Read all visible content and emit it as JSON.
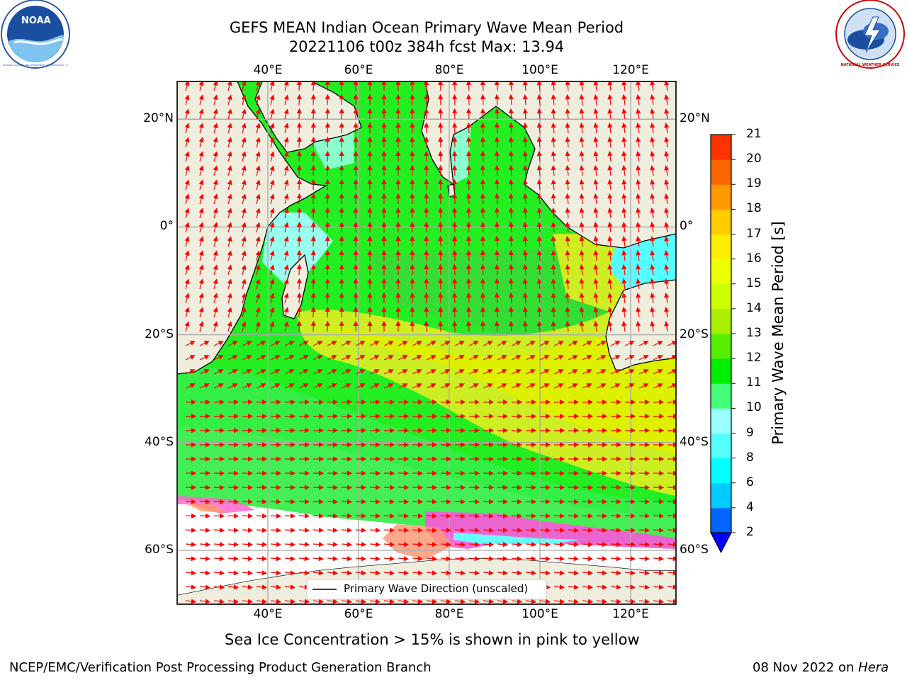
{
  "title": {
    "line1": "GEFS MEAN Indian Ocean Primary Wave Mean Period",
    "line2": "20221106 t00z 384h fcst   Max: 13.94"
  },
  "logos": {
    "noara": "noaa-logo",
    "nws": "nws-logo",
    "noaa_text": "NOAA",
    "noaa_ring_text": "NATIONAL OCEANIC AND ATMOSPHERIC ADMINISTRATION · U.S. DEPARTMENT OF COMMERCE",
    "nws_ring_text": "NATIONAL WEATHER SERVICE"
  },
  "axes": {
    "lon_ticks": [
      "40°E",
      "60°E",
      "80°E",
      "100°E",
      "120°E"
    ],
    "lat_ticks": [
      "20°N",
      "0°",
      "20°S",
      "40°S",
      "60°S"
    ],
    "lon_values": [
      40,
      60,
      80,
      100,
      120
    ],
    "lat_values": [
      20,
      0,
      -20,
      -40,
      -60
    ],
    "lon_range": [
      20,
      130
    ],
    "lat_range": [
      -70,
      27
    ]
  },
  "legend": {
    "label": "Primary Wave Direction (unscaled)",
    "placement": "bottom-center"
  },
  "colorbar": {
    "label": "Primary Wave Mean Period [s]",
    "ticks": [
      "2",
      "4",
      "6",
      "8",
      "9",
      "10",
      "11",
      "12",
      "13",
      "14",
      "15",
      "16",
      "17",
      "18",
      "19",
      "20",
      "21"
    ],
    "colors": [
      "#0066ff",
      "#00ccff",
      "#00ffff",
      "#55ffff",
      "#99ffff",
      "#44ff77",
      "#00ee00",
      "#55ee00",
      "#aaee00",
      "#ccff00",
      "#eeff00",
      "#ffee00",
      "#ffcc00",
      "#ff9900",
      "#ff6600",
      "#ff3300"
    ],
    "extend_color": "#0000ff",
    "arrow_color": "#ff0000"
  },
  "footer": {
    "caption": "Sea Ice Concentration > 15% is shown in pink to yellow",
    "left": "NCEP/EMC/Verification Post Processing Product Generation Branch",
    "date": "08 Nov 2022 on ",
    "machine": "Hera"
  }
}
